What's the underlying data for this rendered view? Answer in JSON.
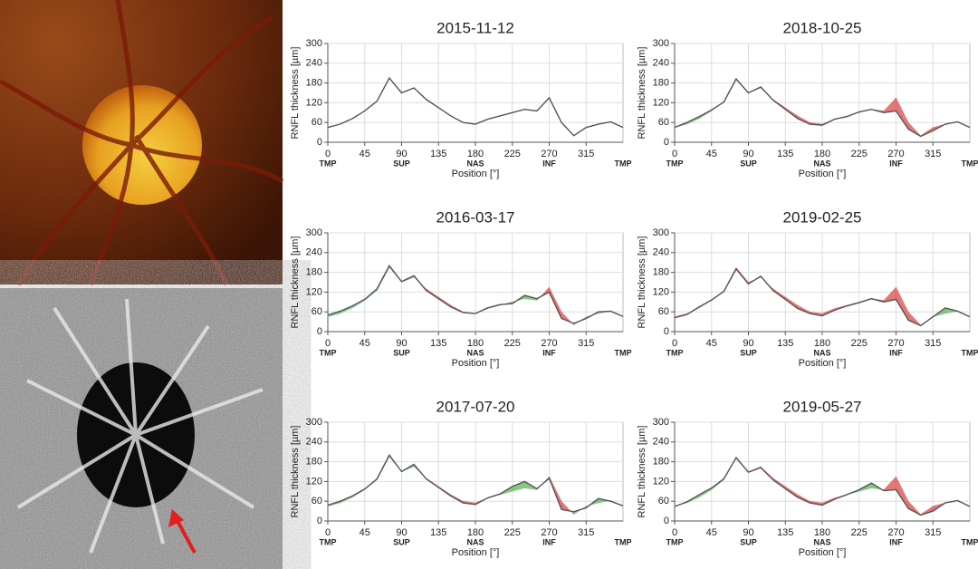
{
  "chart_data": [
    {
      "type": "line",
      "title": "2015-11-12",
      "xlabel": "Position [°]",
      "ylabel": "RNFL thickness [µm]",
      "x": [
        0,
        15,
        30,
        45,
        60,
        75,
        90,
        105,
        120,
        135,
        150,
        165,
        180,
        195,
        210,
        225,
        240,
        255,
        270,
        285,
        300,
        315,
        330,
        345,
        360
      ],
      "values": [
        45,
        55,
        72,
        95,
        125,
        195,
        150,
        165,
        130,
        105,
        80,
        60,
        55,
        70,
        80,
        90,
        100,
        95,
        135,
        60,
        20,
        45,
        55,
        62,
        45
      ],
      "xlim": [
        0,
        360
      ],
      "ylim": [
        0,
        300
      ],
      "xticks": [
        0,
        45,
        90,
        135,
        180,
        225,
        270,
        315
      ],
      "yticks": [
        0,
        60,
        120,
        180,
        240,
        300
      ],
      "sector_labels": [
        {
          "value": 0,
          "label": "TMP"
        },
        {
          "value": 90,
          "label": "SUP"
        },
        {
          "value": 180,
          "label": "NAS"
        },
        {
          "value": 270,
          "label": "INF"
        },
        {
          "value": 360,
          "label": "TMP"
        }
      ],
      "colors": {
        "line": "#555555",
        "loss": "#e06060",
        "gain": "#70c070"
      }
    },
    {
      "type": "line",
      "title": "2016-03-17",
      "xlabel": "Position [°]",
      "ylabel": "RNFL thickness [µm]",
      "x": [
        0,
        15,
        30,
        45,
        60,
        75,
        90,
        105,
        120,
        135,
        150,
        165,
        180,
        195,
        210,
        225,
        240,
        255,
        270,
        285,
        300,
        315,
        330,
        345,
        360
      ],
      "values": [
        50,
        62,
        78,
        98,
        130,
        200,
        152,
        170,
        125,
        100,
        75,
        58,
        55,
        72,
        82,
        85,
        110,
        100,
        120,
        40,
        25,
        40,
        60,
        62,
        46
      ],
      "baseline_values": [
        45,
        55,
        72,
        95,
        125,
        195,
        150,
        165,
        130,
        105,
        80,
        60,
        55,
        70,
        80,
        90,
        100,
        95,
        135,
        60,
        20,
        45,
        55,
        62,
        45
      ],
      "xlim": [
        0,
        360
      ],
      "ylim": [
        0,
        300
      ],
      "xticks": [
        0,
        45,
        90,
        135,
        180,
        225,
        270,
        315
      ],
      "yticks": [
        0,
        60,
        120,
        180,
        240,
        300
      ],
      "sector_labels": [
        {
          "value": 0,
          "label": "TMP"
        },
        {
          "value": 90,
          "label": "SUP"
        },
        {
          "value": 180,
          "label": "NAS"
        },
        {
          "value": 270,
          "label": "INF"
        },
        {
          "value": 360,
          "label": "TMP"
        }
      ],
      "colors": {
        "line": "#555555",
        "loss": "#e06060",
        "gain": "#70c070"
      }
    },
    {
      "type": "line",
      "title": "2017-07-20",
      "xlabel": "Position [°]",
      "ylabel": "RNFL thickness [µm]",
      "x": [
        0,
        15,
        30,
        45,
        60,
        75,
        90,
        105,
        120,
        135,
        150,
        165,
        180,
        195,
        210,
        225,
        240,
        255,
        270,
        285,
        300,
        315,
        330,
        345,
        360
      ],
      "values": [
        48,
        60,
        76,
        97,
        128,
        200,
        150,
        172,
        128,
        102,
        76,
        55,
        50,
        70,
        82,
        105,
        120,
        98,
        130,
        35,
        28,
        40,
        68,
        60,
        46
      ],
      "baseline_values": [
        45,
        55,
        72,
        95,
        125,
        195,
        150,
        165,
        130,
        105,
        80,
        60,
        55,
        70,
        80,
        90,
        100,
        95,
        135,
        60,
        20,
        45,
        55,
        62,
        45
      ],
      "xlim": [
        0,
        360
      ],
      "ylim": [
        0,
        300
      ],
      "xticks": [
        0,
        45,
        90,
        135,
        180,
        225,
        270,
        315
      ],
      "yticks": [
        0,
        60,
        120,
        180,
        240,
        300
      ],
      "sector_labels": [
        {
          "value": 0,
          "label": "TMP"
        },
        {
          "value": 90,
          "label": "SUP"
        },
        {
          "value": 180,
          "label": "NAS"
        },
        {
          "value": 270,
          "label": "INF"
        },
        {
          "value": 360,
          "label": "TMP"
        }
      ],
      "colors": {
        "line": "#555555",
        "loss": "#e06060",
        "gain": "#70c070"
      }
    },
    {
      "type": "line",
      "title": "2018-10-25",
      "xlabel": "Position [°]",
      "ylabel": "RNFL thickness [µm]",
      "x": [
        0,
        15,
        30,
        45,
        60,
        75,
        90,
        105,
        120,
        135,
        150,
        165,
        180,
        195,
        210,
        225,
        240,
        255,
        270,
        285,
        300,
        315,
        330,
        345,
        360
      ],
      "values": [
        45,
        60,
        78,
        98,
        122,
        192,
        150,
        168,
        128,
        100,
        72,
        55,
        52,
        70,
        78,
        92,
        100,
        90,
        95,
        40,
        18,
        35,
        55,
        62,
        45
      ],
      "baseline_values": [
        45,
        55,
        72,
        95,
        125,
        195,
        150,
        165,
        130,
        105,
        80,
        60,
        55,
        70,
        80,
        90,
        100,
        95,
        135,
        60,
        20,
        45,
        55,
        62,
        45
      ],
      "xlim": [
        0,
        360
      ],
      "ylim": [
        0,
        300
      ],
      "xticks": [
        0,
        45,
        90,
        135,
        180,
        225,
        270,
        315
      ],
      "yticks": [
        0,
        60,
        120,
        180,
        240,
        300
      ],
      "sector_labels": [
        {
          "value": 0,
          "label": "TMP"
        },
        {
          "value": 90,
          "label": "SUP"
        },
        {
          "value": 180,
          "label": "NAS"
        },
        {
          "value": 270,
          "label": "INF"
        },
        {
          "value": 360,
          "label": "TMP"
        }
      ],
      "colors": {
        "line": "#555555",
        "loss": "#e06060",
        "gain": "#70c070"
      }
    },
    {
      "type": "line",
      "title": "2019-02-25",
      "xlabel": "Position [°]",
      "ylabel": "RNFL thickness [µm]",
      "x": [
        0,
        15,
        30,
        45,
        60,
        75,
        90,
        105,
        120,
        135,
        150,
        165,
        180,
        195,
        210,
        225,
        240,
        255,
        270,
        285,
        300,
        315,
        330,
        345,
        360
      ],
      "values": [
        42,
        52,
        75,
        96,
        122,
        190,
        145,
        168,
        125,
        98,
        70,
        55,
        48,
        65,
        78,
        88,
        100,
        90,
        98,
        35,
        18,
        45,
        72,
        62,
        45
      ],
      "baseline_values": [
        45,
        55,
        72,
        95,
        125,
        195,
        150,
        165,
        130,
        105,
        80,
        60,
        55,
        70,
        80,
        90,
        100,
        95,
        135,
        60,
        20,
        45,
        55,
        62,
        45
      ],
      "xlim": [
        0,
        360
      ],
      "ylim": [
        0,
        300
      ],
      "xticks": [
        0,
        45,
        90,
        135,
        180,
        225,
        270,
        315
      ],
      "yticks": [
        0,
        60,
        120,
        180,
        240,
        300
      ],
      "sector_labels": [
        {
          "value": 0,
          "label": "TMP"
        },
        {
          "value": 90,
          "label": "SUP"
        },
        {
          "value": 180,
          "label": "NAS"
        },
        {
          "value": 270,
          "label": "INF"
        },
        {
          "value": 360,
          "label": "TMP"
        }
      ],
      "colors": {
        "line": "#555555",
        "loss": "#e06060",
        "gain": "#70c070"
      }
    },
    {
      "type": "line",
      "title": "2019-05-27",
      "xlabel": "Position [°]",
      "ylabel": "RNFL thickness [µm]",
      "x": [
        0,
        15,
        30,
        45,
        60,
        75,
        90,
        105,
        120,
        135,
        150,
        165,
        180,
        195,
        210,
        225,
        240,
        255,
        270,
        285,
        300,
        315,
        330,
        345,
        360
      ],
      "values": [
        44,
        58,
        80,
        100,
        128,
        192,
        148,
        162,
        125,
        98,
        72,
        55,
        48,
        66,
        80,
        95,
        115,
        92,
        95,
        38,
        18,
        30,
        55,
        62,
        44
      ],
      "baseline_values": [
        45,
        55,
        72,
        95,
        125,
        195,
        150,
        165,
        130,
        105,
        80,
        60,
        55,
        70,
        80,
        90,
        100,
        95,
        135,
        60,
        20,
        45,
        55,
        62,
        45
      ],
      "xlim": [
        0,
        360
      ],
      "ylim": [
        0,
        300
      ],
      "xticks": [
        0,
        45,
        90,
        135,
        180,
        225,
        270,
        315
      ],
      "yticks": [
        0,
        60,
        120,
        180,
        240,
        300
      ],
      "sector_labels": [
        {
          "value": 0,
          "label": "TMP"
        },
        {
          "value": 90,
          "label": "SUP"
        },
        {
          "value": 180,
          "label": "NAS"
        },
        {
          "value": 270,
          "label": "INF"
        },
        {
          "value": 360,
          "label": "TMP"
        }
      ],
      "colors": {
        "line": "#555555",
        "loss": "#e06060",
        "gain": "#70c070"
      }
    }
  ]
}
